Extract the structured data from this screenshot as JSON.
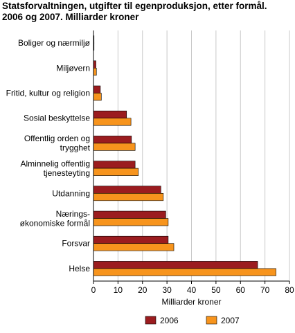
{
  "title_line1": "Statsforvaltningen, utgifter til egenproduksjon, etter formål.",
  "title_line2": "2006 og 2007. Milliarder kroner",
  "colors": {
    "2006": "#9b1c1f",
    "2007": "#f7941d",
    "grid": "#c8c8c8",
    "axis": "#000000"
  },
  "chart_data": {
    "type": "bar",
    "orientation": "horizontal",
    "categories": [
      [
        "Boliger og nærmiljø"
      ],
      [
        "Miljøvern"
      ],
      [
        "Fritid, kultur og religion"
      ],
      [
        "Sosial beskyttelse"
      ],
      [
        "Offentlig orden og",
        "trygghet"
      ],
      [
        "Alminnelig offentlig",
        "tjenesteyting"
      ],
      [
        "Utdanning"
      ],
      [
        "Nærings-",
        "økonomiske formål"
      ],
      [
        "Forsvar"
      ],
      [
        "Helse"
      ]
    ],
    "series": [
      {
        "name": "2006",
        "values": [
          0.1,
          1.0,
          2.8,
          13.5,
          15.5,
          17.0,
          27.5,
          29.5,
          30.5,
          67.0
        ]
      },
      {
        "name": "2007",
        "values": [
          0.1,
          1.2,
          3.2,
          15.3,
          17.0,
          18.3,
          28.5,
          30.5,
          32.8,
          74.5
        ]
      }
    ],
    "xlabel": "Milliarder kroner",
    "xlim": [
      0,
      80
    ],
    "xticks": [
      0,
      10,
      20,
      30,
      40,
      50,
      60,
      70,
      80
    ],
    "grid": true,
    "legend_position": "bottom"
  }
}
